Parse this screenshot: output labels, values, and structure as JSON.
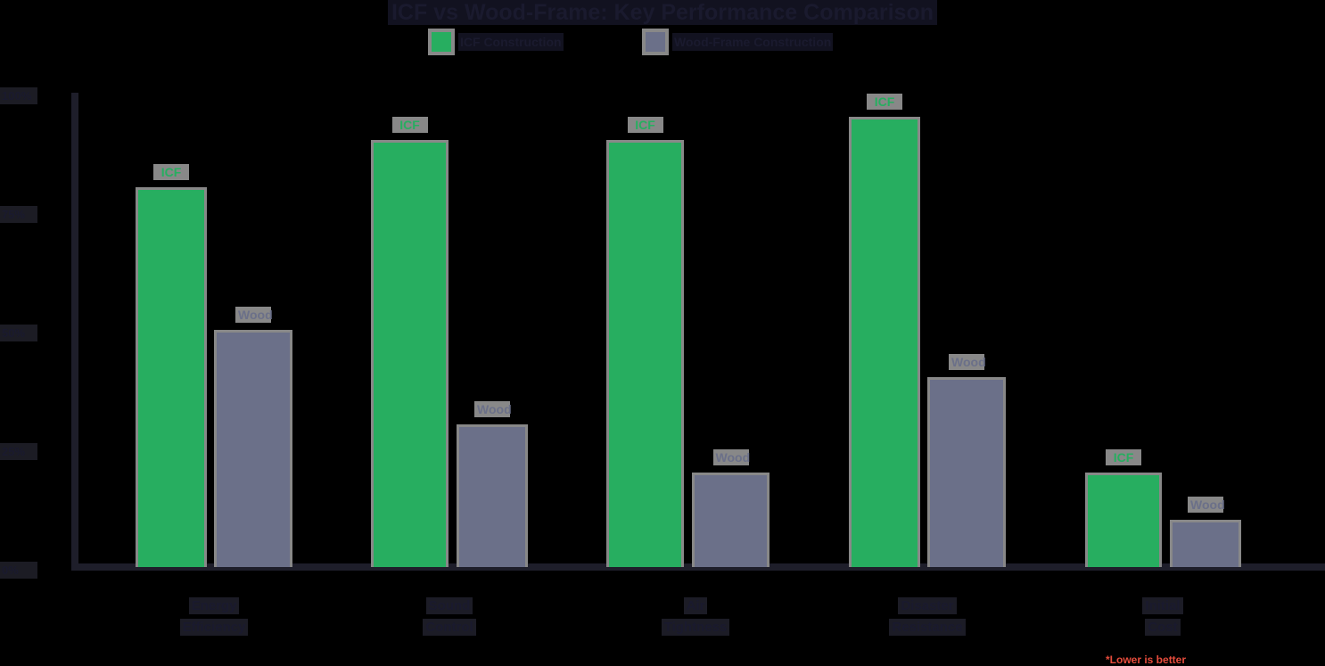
{
  "title": "ICF vs Wood-Frame: Key Performance Comparison",
  "legend": [
    {
      "label": "ICF Construction",
      "color": "#27ae60"
    },
    {
      "label": "Wood-Frame Construction",
      "color": "#6b7089"
    }
  ],
  "y_ticks": [
    "100%",
    "75%",
    "50%",
    "25%",
    "0%"
  ],
  "bar_labels": {
    "icf": "ICF",
    "wood": "Wood"
  },
  "categories": [
    {
      "line1": "Energy",
      "line2": "Efficiency"
    },
    {
      "line1": "Sound",
      "line2": "Control"
    },
    {
      "line1": "Air",
      "line2": "Tightness"
    },
    {
      "line1": "Disaster",
      "line2": "Resistance"
    },
    {
      "line1": "Initial",
      "line2": "Cost"
    }
  ],
  "note": "*Lower is better",
  "chart_data": {
    "type": "bar",
    "title": "ICF vs Wood-Frame: Key Performance Comparison",
    "categories": [
      "Energy Efficiency",
      "Sound Control",
      "Air Tightness",
      "Disaster Resistance",
      "Initial Cost"
    ],
    "series": [
      {
        "name": "ICF Construction",
        "color": "#27ae60",
        "values": [
          80,
          90,
          90,
          95,
          20
        ]
      },
      {
        "name": "Wood-Frame Construction",
        "color": "#6b7089",
        "values": [
          50,
          30,
          20,
          40,
          10
        ]
      }
    ],
    "xlabel": "",
    "ylabel": "",
    "ylim": [
      0,
      100
    ],
    "y_tick_labels": [
      "0%",
      "25%",
      "50%",
      "75%",
      "100%"
    ],
    "legend_position": "top",
    "grid": false,
    "annotations": [
      "*Lower is better (Initial Cost)"
    ]
  }
}
